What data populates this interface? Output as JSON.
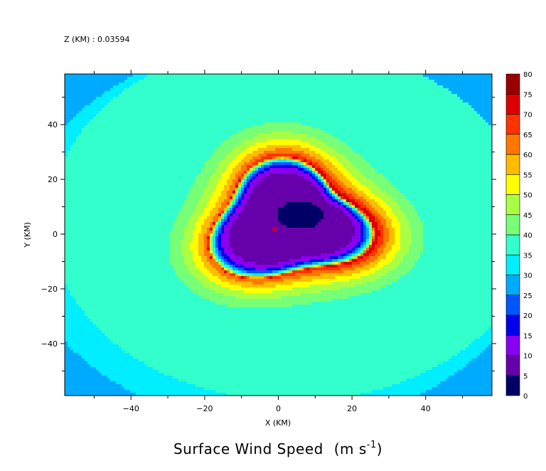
{
  "z_label": "Z (KM) : 0.03594",
  "chart_data": {
    "type": "heatmap",
    "title": "Surface Wind Speed",
    "title_unit_pre": "(m s",
    "title_unit_exp": "-1",
    "title_unit_post": ")",
    "xlabel": "X (KM)",
    "ylabel": "Y (KM)",
    "xlim": [
      -58,
      58
    ],
    "ylim": [
      -59,
      58.5
    ],
    "x_ticks": [
      -40,
      -20,
      0,
      20,
      40
    ],
    "y_ticks": [
      -40,
      -20,
      0,
      20,
      40
    ],
    "x_tick_labels": [
      "−40",
      "−20",
      "0",
      "20",
      "40"
    ],
    "y_tick_labels": [
      "−40",
      "−20",
      "0",
      "20",
      "40"
    ],
    "colorbar": {
      "levels": [
        0,
        5,
        10,
        15,
        20,
        25,
        30,
        35,
        40,
        45,
        50,
        55,
        60,
        65,
        70,
        75,
        80
      ],
      "level_labels": [
        "0",
        "5",
        "10",
        "15",
        "20",
        "25",
        "30",
        "35",
        "40",
        "45",
        "50",
        "55",
        "60",
        "65",
        "70",
        "75",
        "80"
      ],
      "colors": [
        "#000066",
        "#6600aa",
        "#8800ee",
        "#0000ee",
        "#0055ff",
        "#00aaff",
        "#00eeff",
        "#33ffcc",
        "#77ff77",
        "#aaff44",
        "#ffff00",
        "#ffbb00",
        "#ff7700",
        "#ff3300",
        "#dd0000",
        "#990000"
      ]
    },
    "storm_center_marker": {
      "x": -1,
      "y": 1
    },
    "field_description_points": {
      "eye_min_center": {
        "x": 6,
        "y": 7,
        "value": 3
      },
      "rmw_ring_approx_value": 70
    }
  }
}
